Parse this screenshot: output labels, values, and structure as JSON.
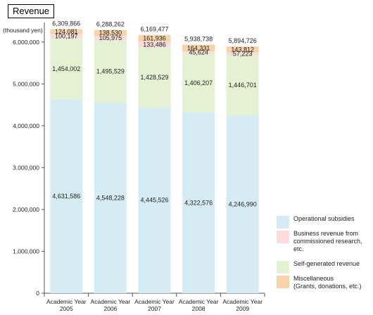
{
  "title": "Revenue",
  "chart_data": {
    "type": "bar",
    "stacked": true,
    "title": "Revenue",
    "ylabel": "(thousand yen)",
    "xlabel": "",
    "ylim": [
      0,
      6500000
    ],
    "yticks": [
      0,
      1000000,
      2000000,
      3000000,
      4000000,
      5000000,
      6000000
    ],
    "ytick_labels": [
      "0",
      "1,000,000",
      "2,000,000",
      "3,000,000",
      "4,000,000",
      "5,000,000",
      "6,000,000"
    ],
    "categories": [
      [
        "Academic Year",
        "2005"
      ],
      [
        "Academic Year",
        "2006"
      ],
      [
        "Academic Year",
        "2007"
      ],
      [
        "Academic Year",
        "2008"
      ],
      [
        "Academic Year",
        "2009"
      ]
    ],
    "totals": [
      6309866,
      6288262,
      6169477,
      5938738,
      5894726
    ],
    "total_labels": [
      "6,309,866",
      "6,288,262",
      "6,169,477",
      "5,938,738",
      "5,894,726"
    ],
    "series": [
      {
        "name": "Operational subsidies",
        "color": "#d6ecf4",
        "values": [
          4631586,
          4548228,
          4445526,
          4322576,
          4246990
        ],
        "labels": [
          "4,631,586",
          "4,548,228",
          "4,445,526",
          "4,322,576",
          "4,246,990"
        ]
      },
      {
        "name": "Self-generated revenue",
        "color": "#e4f1d2",
        "values": [
          1454002,
          1495529,
          1428529,
          1406207,
          1446701
        ],
        "labels": [
          "1,454,002",
          "1,495,529",
          "1,428,529",
          "1,406,207",
          "1,446,701"
        ]
      },
      {
        "name": "Business revenue from\ncommissioned research, etc.",
        "color": "#fbdde0",
        "values": [
          100197,
          105975,
          133486,
          45624,
          57223
        ],
        "labels": [
          "100,197",
          "105,975",
          "133,486",
          "45,624",
          "57,223"
        ]
      },
      {
        "name": "Miscellaneous\n(Grants, donations, etc.)",
        "color": "#f8d4aa",
        "values": [
          124081,
          138530,
          161936,
          164331,
          143812
        ],
        "labels": [
          "124,081",
          "138,530",
          "161,936",
          "164,331",
          "143,812"
        ]
      }
    ],
    "legend": [
      {
        "name": "Operational subsidies",
        "color": "#d6ecf4"
      },
      {
        "name": "Business revenue from\ncommissioned research, etc.",
        "color": "#fbdde0"
      },
      {
        "name": "Self-generated revenue",
        "color": "#e4f1d2"
      },
      {
        "name": "Miscellaneous\n(Grants, donations, etc.)",
        "color": "#f8d4aa"
      }
    ],
    "legend_position": "bottom-right",
    "grid": false
  }
}
